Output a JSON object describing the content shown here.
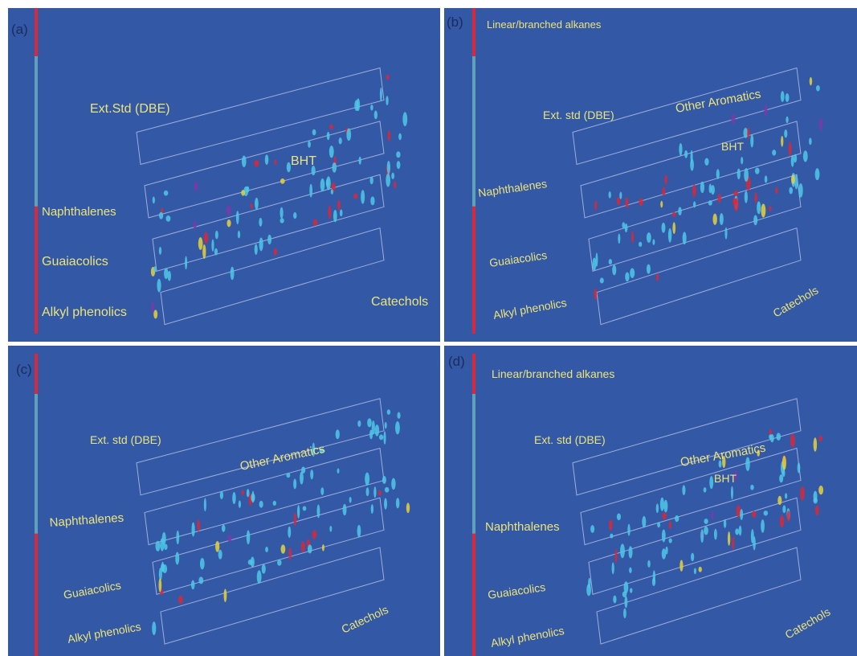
{
  "panels": [
    {
      "label": "(a)",
      "annotations": [
        "Ext.Std (DBE)",
        "BHT",
        "Naphthalenes",
        "Guaiacolics",
        "Alkyl phenolics",
        "Catechols"
      ]
    },
    {
      "label": "(b)",
      "annotations": [
        "Linear/branched alkanes",
        "Ext. std (DBE)",
        "Other Aromatics",
        "BHT",
        "Naphthalenes",
        "Guaiacolics",
        "Alkyl phenolics",
        "Catechols"
      ]
    },
    {
      "label": "(c)",
      "annotations": [
        "Ext. std (DBE)",
        "Other Aromatics",
        "Naphthalenes",
        "Guaiacolics",
        "Alkyl phenolics",
        "Catechols"
      ]
    },
    {
      "label": "(d)",
      "annotations": [
        "Linear/branched alkanes",
        "Ext. std (DBE)",
        "Other Aromatics",
        "BHT",
        "Naphthalenes",
        "Guaiacolics",
        "Alkyl phenolics",
        "Catechols"
      ]
    }
  ]
}
